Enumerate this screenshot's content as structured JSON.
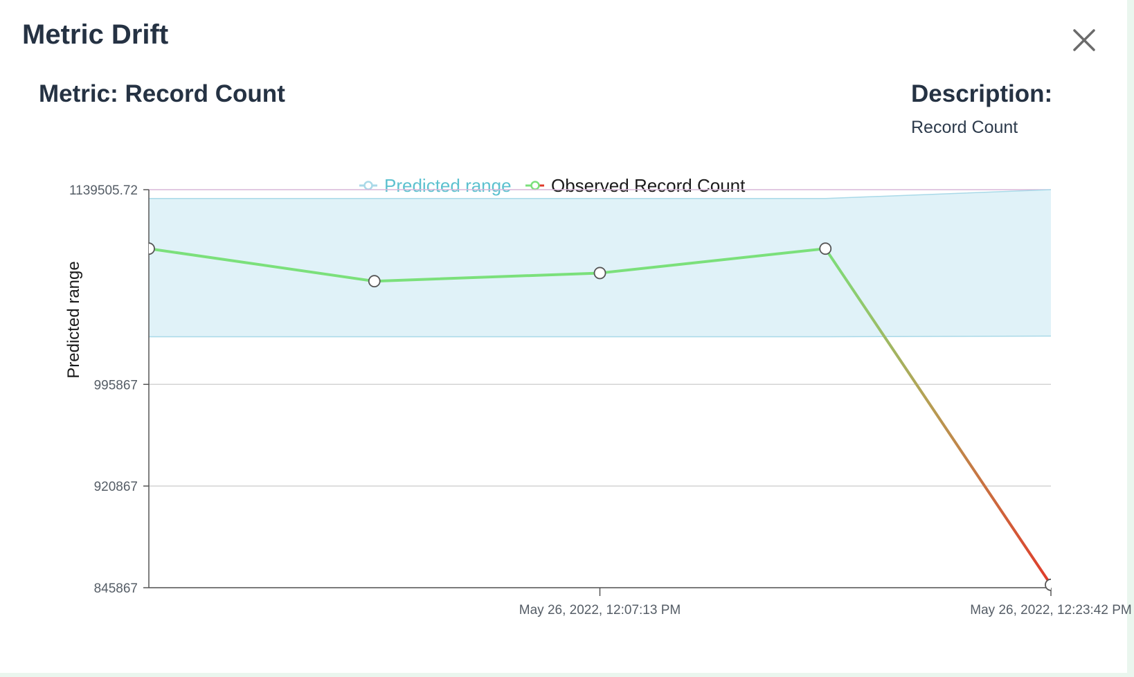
{
  "modal": {
    "title": "Metric Drift",
    "close_icon": "close-icon"
  },
  "metric": {
    "label": "Metric: Record Count"
  },
  "description": {
    "label": "Description:",
    "value": "Record Count"
  },
  "colors": {
    "band_fill": "#e0f2f8",
    "band_stroke": "#a9d9e8",
    "predicted_legend": "#5cc1cf",
    "observed_ok": "#7be07b",
    "observed_alert": "#e03a2a",
    "grid": "#d3d3d3",
    "top_line": "#d9b6d9"
  },
  "chart_data": {
    "type": "line",
    "ylabel": "Predicted range",
    "xlabel": "",
    "y_ticks": [
      "1139505.72",
      "995867",
      "920867",
      "845867"
    ],
    "ylim": [
      845867,
      1139505.72
    ],
    "x_tick_labels": [
      "May 26, 2022, 12:07:13 PM",
      "May 26, 2022, 12:23:42 PM"
    ],
    "series": [
      {
        "name": "Predicted range",
        "type": "band",
        "lower": [
          1031000,
          1031000,
          1031000,
          1031000,
          1031500
        ],
        "upper": [
          1133000,
          1133000,
          1133000,
          1133000,
          1139505.72
        ]
      },
      {
        "name": "Observed Record Count",
        "type": "line",
        "values": [
          1096000,
          1072000,
          1078000,
          1096000,
          848000
        ]
      }
    ]
  }
}
